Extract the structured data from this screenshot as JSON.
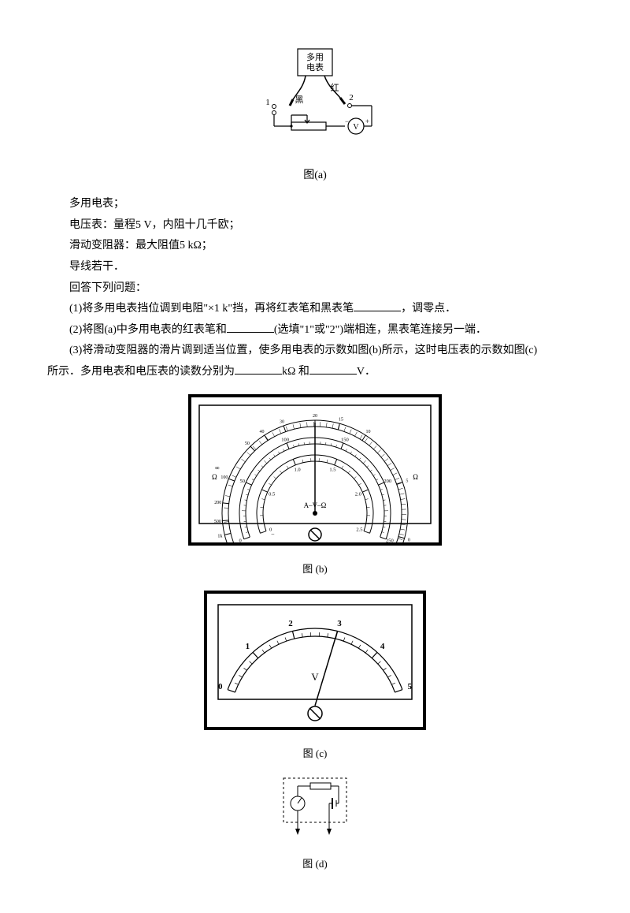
{
  "fig_a": {
    "caption": "图(a)",
    "meter_label": "多用\n电表",
    "left_terminal": "1",
    "right_terminal": "2",
    "black_label": "黑",
    "red_label": "红",
    "volt_symbol": "V",
    "minus": "−",
    "plus": "+",
    "box_color": "#000000",
    "line_color": "#000000"
  },
  "instruments": {
    "multimeter_label": "多用电表；",
    "voltmeter_label": "电压表：量程5 V，内阻十几千欧；",
    "rheostat_label": "滑动变阻器：最大阻值5 kΩ；",
    "wires_label": "导线若干．",
    "answer_prompt": "回答下列问题："
  },
  "q1": {
    "text_a": "(1)将多用电表挡位调到电阻\"×1 k\"挡，再将红表笔和黑表笔",
    "text_b": "，调零点．"
  },
  "q2": {
    "text_a": "(2)将图(a)中多用电表的红表笔和",
    "text_b": "(选填\"1\"或\"2\")端相连，黑表笔连接另一端．"
  },
  "q3": {
    "text_a": "(3)将滑动变阻器的滑片调到适当位置，使多用电表的示数如图(b)所示，这时电压表的示数如图(c)",
    "text_b": "所示．多用电表和电压表的读数分别为",
    "text_c": "kΩ 和",
    "text_d": "V．"
  },
  "fig_b": {
    "caption": "图 (b)",
    "label_left": "∞",
    "label_right_omega": "Ω",
    "label_av_omega": "A–V–Ω",
    "omega_ticks_top": [
      "1k",
      "500",
      "200",
      "100",
      "50",
      "40",
      "30",
      "20",
      "15",
      "10",
      "5",
      "0"
    ],
    "mid_scale_max": "250",
    "mid_ticks": [
      "0",
      "50",
      "100",
      "150",
      "200",
      "250"
    ],
    "bot_scale": [
      "0",
      "0.5",
      "1.0",
      "1.5",
      "2.0",
      "2.5"
    ],
    "bot_neg": "−",
    "outer_border_color": "#000000",
    "face_color": "#ffffff",
    "needle_angle_deg": 90
  },
  "fig_c": {
    "caption": "图 (c)",
    "unit": "V",
    "ticks": [
      "0",
      "1",
      "2",
      "3",
      "4",
      "5"
    ],
    "needle_value": 3.0,
    "face_color": "#ffffff",
    "border_color": "#000000"
  },
  "fig_d": {
    "caption": "图 (d)",
    "border_color": "#000000"
  }
}
